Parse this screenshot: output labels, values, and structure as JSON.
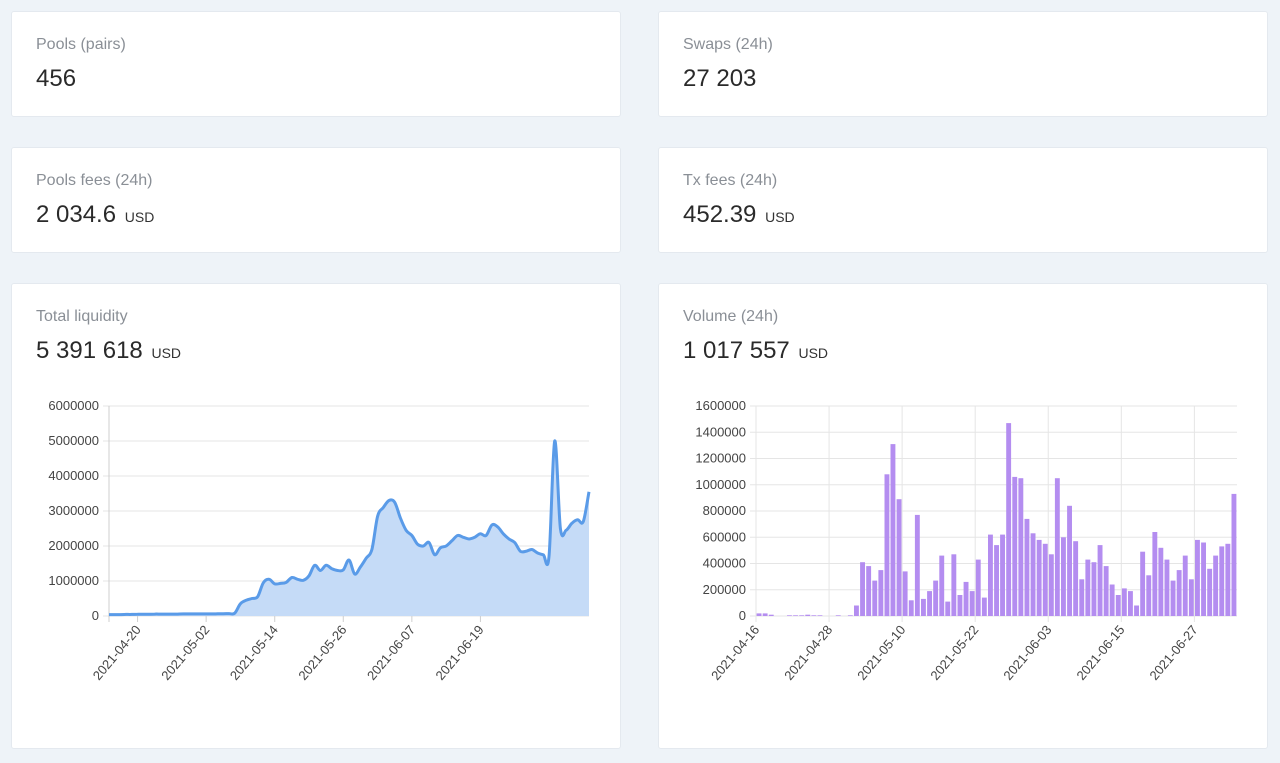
{
  "cards": {
    "pools": {
      "label": "Pools (pairs)",
      "value": "456"
    },
    "swaps": {
      "label": "Swaps (24h)",
      "value": "27 203"
    },
    "pool_fees": {
      "label": "Pools fees (24h)",
      "value": "2 034.6",
      "unit": "USD"
    },
    "tx_fees": {
      "label": "Tx fees (24h)",
      "value": "452.39",
      "unit": "USD"
    },
    "liquidity": {
      "label": "Total liquidity",
      "value": "5 391 618",
      "unit": "USD"
    },
    "volume": {
      "label": "Volume (24h)",
      "value": "1 017 557",
      "unit": "USD"
    }
  },
  "colors": {
    "line": "#5a9be8",
    "area": "#c5dbf7",
    "bar": "#b48df0",
    "grid": "#e5e5e5",
    "axis_text": "#444444"
  },
  "chart_data": [
    {
      "type": "area",
      "title": "Total liquidity",
      "ylim": [
        0,
        6000000
      ],
      "yticks": [
        0,
        1000000,
        2000000,
        3000000,
        4000000,
        5000000,
        6000000
      ],
      "x_start": "2021-04-15",
      "xticks": [
        "2021-04-20",
        "2021-05-02",
        "2021-05-14",
        "2021-05-26",
        "2021-06-07",
        "2021-06-19"
      ],
      "grid": "horizontal",
      "values": [
        40000,
        40000,
        40000,
        45000,
        45000,
        50000,
        50000,
        50000,
        55000,
        55000,
        55000,
        55000,
        55000,
        60000,
        60000,
        60000,
        60000,
        60000,
        60000,
        65000,
        65000,
        70000,
        80000,
        350000,
        450000,
        500000,
        550000,
        950000,
        1050000,
        920000,
        930000,
        960000,
        1100000,
        1050000,
        1020000,
        1150000,
        1450000,
        1300000,
        1450000,
        1350000,
        1300000,
        1320000,
        1600000,
        1200000,
        1400000,
        1650000,
        1900000,
        2850000,
        3100000,
        3300000,
        3250000,
        2800000,
        2450000,
        2300000,
        2050000,
        2000000,
        2100000,
        1750000,
        1950000,
        2000000,
        2150000,
        2300000,
        2250000,
        2200000,
        2250000,
        2350000,
        2300000,
        2600000,
        2550000,
        2350000,
        2200000,
        2100000,
        1850000,
        1850000,
        1900000,
        1800000,
        1750000,
        1700000,
        5000000,
        2500000,
        2450000,
        2650000,
        2750000,
        2700000,
        3550000
      ]
    },
    {
      "type": "bar",
      "title": "Volume (24h)",
      "ylim": [
        0,
        1600000
      ],
      "yticks": [
        0,
        200000,
        400000,
        600000,
        800000,
        1000000,
        1200000,
        1400000,
        1600000
      ],
      "x_start": "2021-04-16",
      "xticks": [
        "2021-04-16",
        "2021-04-28",
        "2021-05-10",
        "2021-05-22",
        "2021-06-03",
        "2021-06-15",
        "2021-06-27"
      ],
      "grid": "both",
      "values": [
        20000,
        20000,
        10000,
        0,
        0,
        5000,
        5000,
        5000,
        10000,
        5000,
        5000,
        0,
        0,
        5000,
        0,
        5000,
        80000,
        410000,
        380000,
        270000,
        350000,
        1080000,
        1310000,
        890000,
        340000,
        120000,
        770000,
        130000,
        190000,
        270000,
        460000,
        110000,
        470000,
        160000,
        260000,
        190000,
        430000,
        140000,
        620000,
        540000,
        620000,
        1470000,
        1060000,
        1050000,
        740000,
        630000,
        580000,
        550000,
        470000,
        1050000,
        600000,
        840000,
        570000,
        280000,
        430000,
        410000,
        540000,
        380000,
        240000,
        160000,
        210000,
        190000,
        80000,
        490000,
        310000,
        640000,
        520000,
        430000,
        270000,
        350000,
        460000,
        280000,
        580000,
        560000,
        360000,
        460000,
        530000,
        550000,
        930000
      ]
    }
  ]
}
